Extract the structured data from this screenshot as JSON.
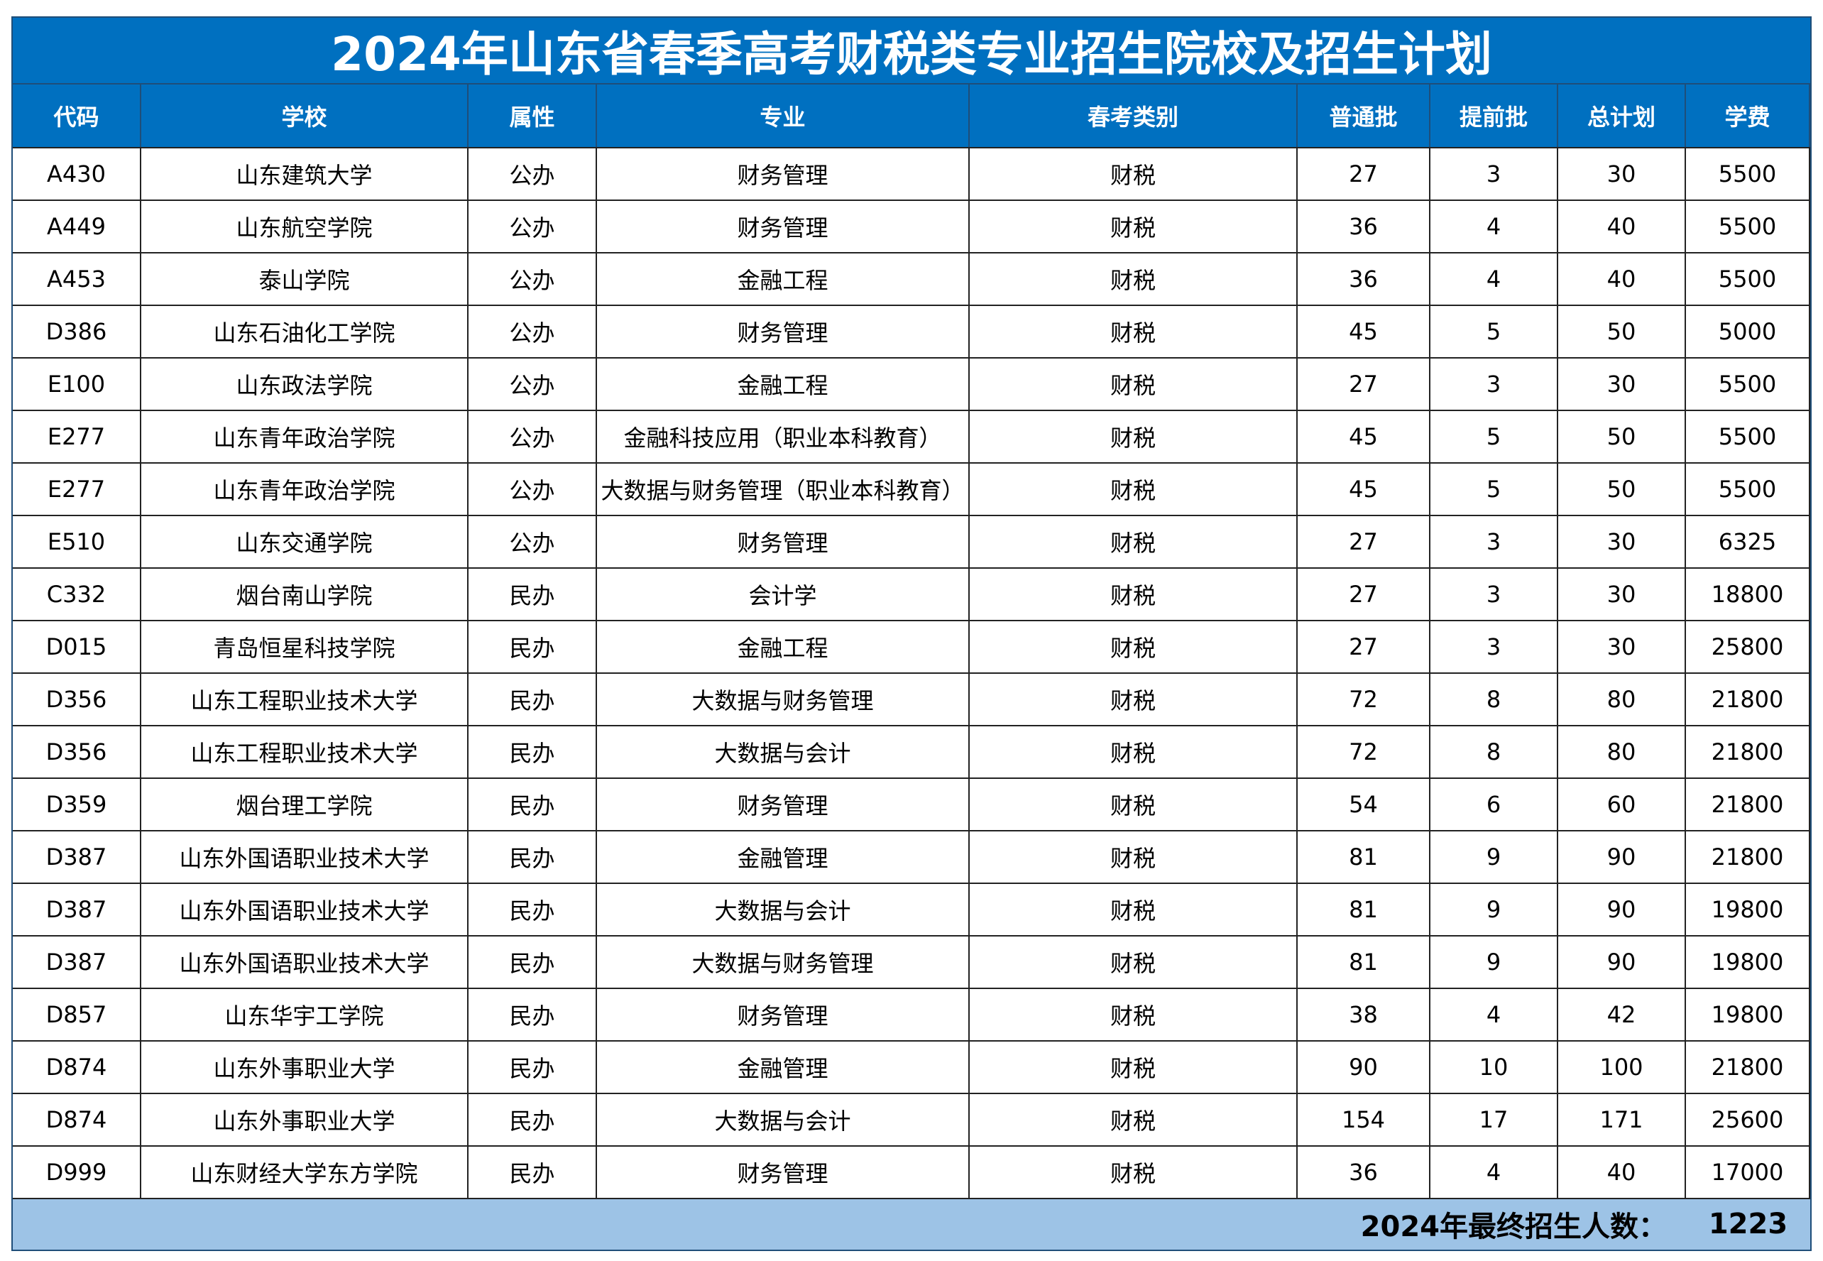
{
  "header": {
    "title": "2024年山东省春季高考财税类专业招生院校及招生计划"
  },
  "table": {
    "columns": [
      "代码",
      "学校",
      "属性",
      "专业",
      "春考类别",
      "普通批",
      "提前批",
      "总计划",
      "学费"
    ],
    "rows": [
      [
        "A430",
        "山东建筑大学",
        "公办",
        "财务管理",
        "财税",
        27,
        3,
        30,
        5500
      ],
      [
        "A449",
        "山东航空学院",
        "公办",
        "财务管理",
        "财税",
        36,
        4,
        40,
        5500
      ],
      [
        "A453",
        "泰山学院",
        "公办",
        "金融工程",
        "财税",
        36,
        4,
        40,
        5500
      ],
      [
        "D386",
        "山东石油化工学院",
        "公办",
        "财务管理",
        "财税",
        45,
        5,
        50,
        5000
      ],
      [
        "E100",
        "山东政法学院",
        "公办",
        "金融工程",
        "财税",
        27,
        3,
        30,
        5500
      ],
      [
        "E277",
        "山东青年政治学院",
        "公办",
        "金融科技应用（职业本科教育）",
        "财税",
        45,
        5,
        50,
        5500
      ],
      [
        "E277",
        "山东青年政治学院",
        "公办",
        "大数据与财务管理（职业本科教育）",
        "财税",
        45,
        5,
        50,
        5500
      ],
      [
        "E510",
        "山东交通学院",
        "公办",
        "财务管理",
        "财税",
        27,
        3,
        30,
        6325
      ],
      [
        "C332",
        "烟台南山学院",
        "民办",
        "会计学",
        "财税",
        27,
        3,
        30,
        18800
      ],
      [
        "D015",
        "青岛恒星科技学院",
        "民办",
        "金融工程",
        "财税",
        27,
        3,
        30,
        25800
      ],
      [
        "D356",
        "山东工程职业技术大学",
        "民办",
        "大数据与财务管理",
        "财税",
        72,
        8,
        80,
        21800
      ],
      [
        "D356",
        "山东工程职业技术大学",
        "民办",
        "大数据与会计",
        "财税",
        72,
        8,
        80,
        21800
      ],
      [
        "D359",
        "烟台理工学院",
        "民办",
        "财务管理",
        "财税",
        54,
        6,
        60,
        21800
      ],
      [
        "D387",
        "山东外国语职业技术大学",
        "民办",
        "金融管理",
        "财税",
        81,
        9,
        90,
        21800
      ],
      [
        "D387",
        "山东外国语职业技术大学",
        "民办",
        "大数据与会计",
        "财税",
        81,
        9,
        90,
        19800
      ],
      [
        "D387",
        "山东外国语职业技术大学",
        "民办",
        "大数据与财务管理",
        "财税",
        81,
        9,
        90,
        19800
      ],
      [
        "D857",
        "山东华宇工学院",
        "民办",
        "财务管理",
        "财税",
        38,
        4,
        42,
        19800
      ],
      [
        "D874",
        "山东外事职业大学",
        "民办",
        "金融管理",
        "财税",
        90,
        10,
        100,
        21800
      ],
      [
        "D874",
        "山东外事职业大学",
        "民办",
        "大数据与会计",
        "财税",
        154,
        17,
        171,
        25600
      ],
      [
        "D999",
        "山东财经大学东方学院",
        "民办",
        "财务管理",
        "财税",
        36,
        4,
        40,
        17000
      ]
    ]
  },
  "footer": {
    "label": "2024年最终招生人数：",
    "total": 1223
  }
}
